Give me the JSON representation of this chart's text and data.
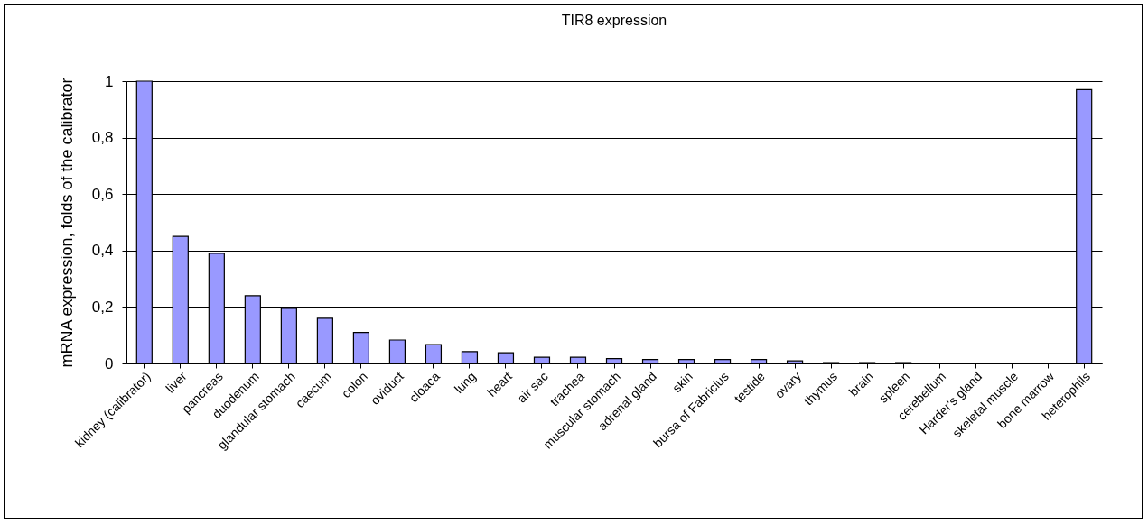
{
  "chart_data": {
    "type": "bar",
    "title": "TIR8 expression",
    "ylabel": "mRNA expression, folds of the calibrator",
    "categories": [
      "kidney (calibrator)",
      "liver",
      "pancreas",
      "duodenum",
      "glandular stomach",
      "caecum",
      "colon",
      "oviduct",
      "cloaca",
      "lung",
      "heart",
      "air sac",
      "trachea",
      "muscular stomach",
      "adrenal gland",
      "skin",
      "bursa of Fabricius",
      "testide",
      "ovary",
      "thymus",
      "brain",
      "spleen",
      "cerebellum",
      "Harder's gland",
      "skeletal muscle",
      "bone marrow",
      "heterophils"
    ],
    "values": [
      1,
      0.45,
      0.39,
      0.24,
      0.195,
      0.16,
      0.11,
      0.083,
      0.067,
      0.042,
      0.038,
      0.022,
      0.022,
      0.017,
      0.014,
      0.014,
      0.014,
      0.014,
      0.009,
      0.003,
      0.003,
      0.003,
      0,
      0,
      0,
      0,
      0.97
    ],
    "color": "#9999ff",
    "ylim": [
      0,
      1
    ],
    "yticks": [
      0,
      {
        "value": 0.2,
        "label": "0,2"
      },
      {
        "value": 0.4,
        "label": "0,4"
      },
      {
        "value": 0.6,
        "label": "0,6"
      },
      {
        "value": 0.8,
        "label": "0,8"
      },
      1
    ],
    "grid": "y"
  }
}
